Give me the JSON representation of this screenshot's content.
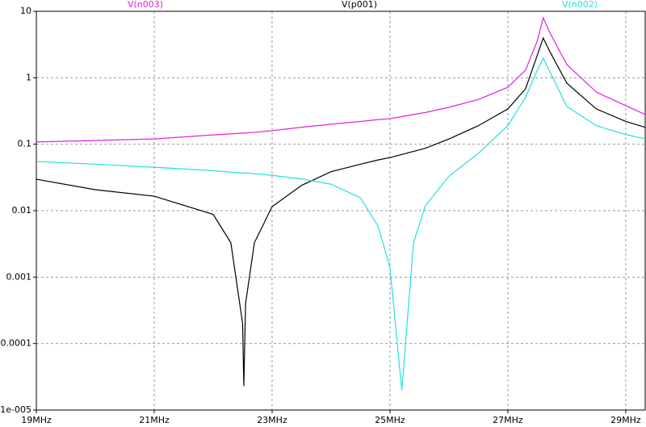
{
  "chart_data": {
    "type": "line",
    "log_y": true,
    "grid": true,
    "x": [
      19,
      20,
      21,
      22,
      22.3,
      22.5,
      22.52,
      22.55,
      22.7,
      23,
      23.5,
      24,
      24.5,
      24.8,
      25,
      25.2,
      25.4,
      25.6,
      26,
      26.5,
      27,
      27.3,
      27.5,
      27.6,
      27.7,
      28,
      28.5,
      29,
      29.33
    ],
    "series": [
      {
        "name": "V(n003)",
        "color": "#e020e0",
        "values": [
          0.108,
          0.114,
          0.12,
          0.138,
          0.143,
          0.147,
          0.147,
          0.148,
          0.151,
          0.16,
          0.18,
          0.2,
          0.22,
          0.235,
          0.242,
          0.26,
          0.28,
          0.3,
          0.36,
          0.47,
          0.72,
          1.3,
          3.6,
          8,
          5,
          1.58,
          0.61,
          0.38,
          0.28
        ]
      },
      {
        "name": "V(p001)",
        "color": "#000000",
        "values": [
          0.0297,
          0.0207,
          0.0165,
          0.0088,
          0.0033,
          0.0002,
          2.3e-05,
          0.0004,
          0.0033,
          0.0115,
          0.024,
          0.0386,
          0.05,
          0.058,
          0.063,
          0.07,
          0.078,
          0.087,
          0.12,
          0.19,
          0.34,
          0.68,
          2.2,
          3.97,
          2.6,
          0.83,
          0.34,
          0.22,
          0.18
        ]
      },
      {
        "name": "V(n002)",
        "color": "#20e0e0",
        "values": [
          0.055,
          0.05,
          0.045,
          0.04,
          0.038,
          0.037,
          0.037,
          0.037,
          0.036,
          0.034,
          0.03,
          0.025,
          0.0156,
          0.0058,
          0.0014,
          2e-05,
          0.0033,
          0.0118,
          0.033,
          0.073,
          0.19,
          0.51,
          1.3,
          1.97,
          1.3,
          0.37,
          0.19,
          0.14,
          0.12
        ]
      }
    ],
    "xlim": [
      19,
      29.33
    ],
    "xticks": [
      {
        "value": 19,
        "label": "19MHz"
      },
      {
        "value": 21,
        "label": "21MHz"
      },
      {
        "value": 23,
        "label": "23MHz"
      },
      {
        "value": 25,
        "label": "25MHz"
      },
      {
        "value": 27,
        "label": "27MHz"
      },
      {
        "value": 29,
        "label": "29MHz"
      }
    ],
    "ylim": [
      1e-05,
      10
    ],
    "yticks": [
      {
        "value": 1e-05,
        "label": "1e-005"
      },
      0.0001,
      0.001,
      0.01,
      0.1,
      1,
      10
    ]
  }
}
